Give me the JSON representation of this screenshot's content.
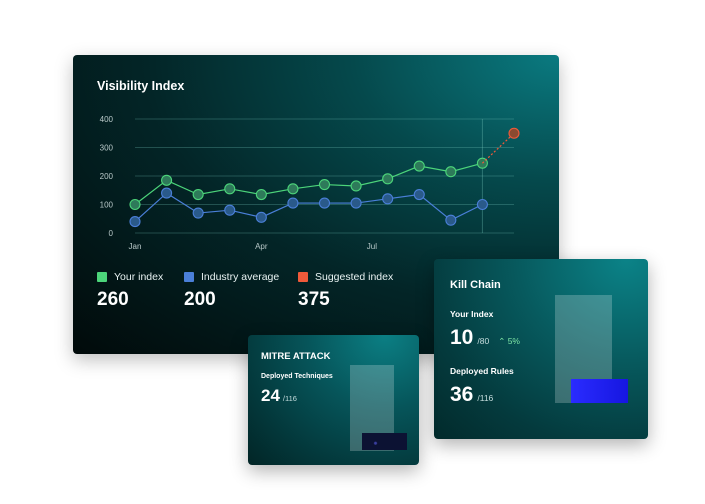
{
  "visibility": {
    "title": "Visibility Index",
    "legend": [
      {
        "label": "Your index",
        "value": "260",
        "color": "#4cd47a"
      },
      {
        "label": "Industry average",
        "value": "200",
        "color": "#4a7fd8"
      },
      {
        "label": "Suggested index",
        "value": "375",
        "color": "#f05a3a"
      }
    ]
  },
  "chart_data": {
    "type": "line",
    "x_tick_labels": [
      "Jan",
      "Apr",
      "Jul"
    ],
    "y_ticks": [
      0,
      100,
      200,
      300,
      400
    ],
    "ylim": [
      0,
      400
    ],
    "grid": true,
    "series": [
      {
        "name": "Your index",
        "color": "#4cd47a",
        "values": [
          100,
          185,
          135,
          155,
          135,
          155,
          170,
          165,
          190,
          235,
          215,
          245
        ]
      },
      {
        "name": "Industry average",
        "color": "#4a7fd8",
        "values": [
          40,
          140,
          70,
          80,
          55,
          105,
          105,
          105,
          120,
          135,
          45,
          100
        ]
      },
      {
        "name": "Suggested index",
        "color": "#f05a3a",
        "values": [
          null,
          null,
          null,
          null,
          null,
          null,
          null,
          null,
          null,
          null,
          null,
          245,
          350
        ]
      }
    ],
    "point_count": 13
  },
  "mitre": {
    "title": "MITRE ATTACK",
    "label": "Deployed Techniques",
    "value": "24",
    "total": "/116"
  },
  "kill_chain": {
    "title": "Kill Chain",
    "index_label": "Your Index",
    "index_value": "10",
    "index_total": "/80",
    "trend": "5%",
    "trend_icon": "chevron-up-icon",
    "rules_label": "Deployed Rules",
    "rules_value": "36",
    "rules_total": "/116"
  }
}
